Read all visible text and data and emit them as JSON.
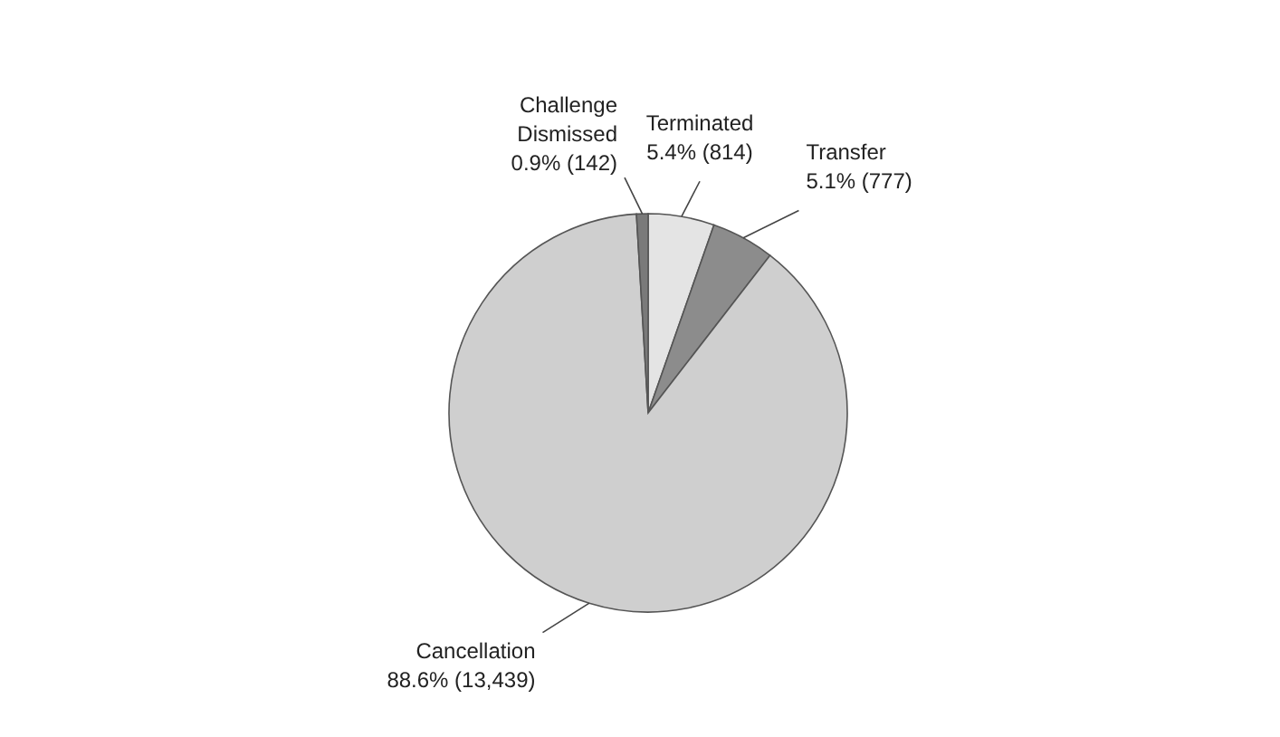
{
  "chart_data": {
    "type": "pie",
    "categories": [
      "Terminated",
      "Transfer",
      "Cancellation",
      "Challenge Dismissed"
    ],
    "values": [
      814,
      777,
      13439,
      142
    ],
    "colors": [
      "#e4e4e4",
      "#8c8c8c",
      "#cfcfcf",
      "#7a7a7a"
    ],
    "value_labels": [
      "5.4% (814)",
      "5.1% (777)",
      "88.6% (13,439)",
      "0.9% (142)"
    ]
  }
}
